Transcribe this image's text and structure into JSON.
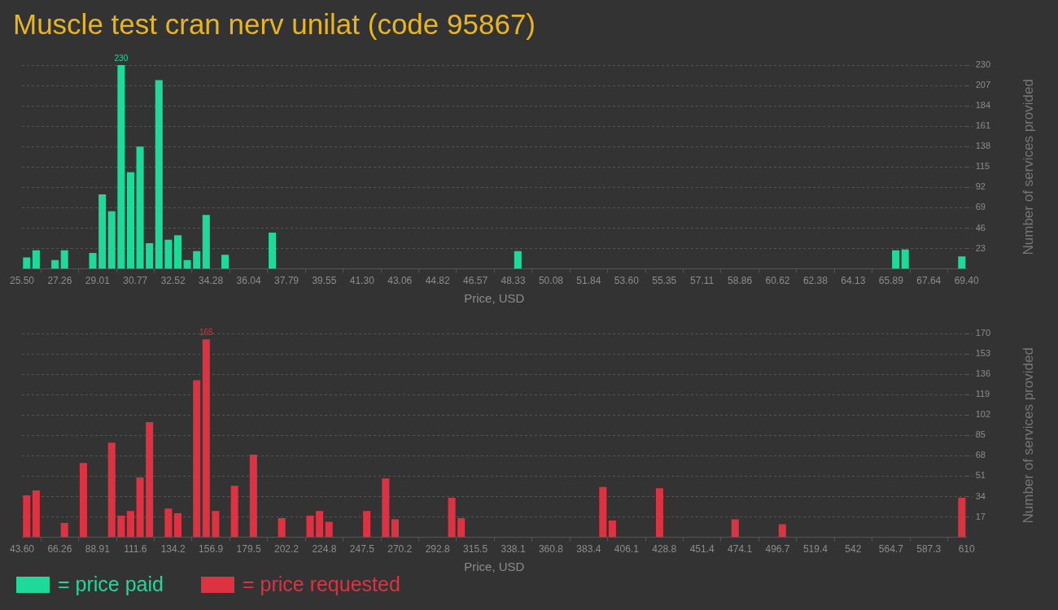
{
  "chart_data": [
    {
      "type": "histogram",
      "title": "Muscle test cran nerv unilat (code 95867)",
      "xlabel": "Price, USD",
      "ylabel": "Number of services provided",
      "bins": [
        25.5,
        25.939,
        26.378,
        26.817,
        27.256,
        27.695,
        28.134,
        28.573,
        29.012,
        29.451,
        29.89,
        30.329,
        30.768,
        31.207,
        31.646,
        32.085,
        32.524,
        32.963,
        33.402,
        33.841,
        34.28,
        34.719,
        35.158,
        35.597,
        36.036,
        36.475,
        36.914,
        37.353,
        37.792,
        38.231,
        38.67,
        39.109,
        39.548,
        39.987,
        40.426,
        40.865,
        41.304,
        41.743,
        42.182,
        42.621,
        43.06,
        43.499,
        43.938,
        44.377,
        44.816,
        45.255,
        45.694,
        46.133,
        46.572,
        47.011,
        47.45,
        47.889,
        48.328,
        48.767,
        49.206,
        49.645,
        50.084,
        50.523,
        50.962,
        51.401,
        51.84,
        52.279,
        52.718,
        53.157,
        53.596,
        54.035,
        54.474,
        54.913,
        55.352,
        55.791,
        56.23,
        56.669,
        57.108,
        57.547,
        57.986,
        58.425,
        58.864,
        59.303,
        59.742,
        60.181,
        60.62,
        61.059,
        61.498,
        61.937,
        62.376,
        62.815,
        63.254,
        63.693,
        64.132,
        64.571,
        65.01,
        65.449,
        65.888,
        66.327,
        66.766,
        67.205,
        67.644,
        68.083,
        68.522,
        68.961,
        69.4
      ],
      "series": [
        {
          "name": "= price paid",
          "color": "#1fd99a",
          "values": [
            13,
            21,
            0,
            10,
            21,
            0,
            0,
            18,
            84,
            65,
            230,
            109,
            138,
            29,
            213,
            33,
            38,
            10,
            20,
            61,
            0,
            16,
            0,
            0,
            0,
            0,
            41,
            0,
            0,
            0,
            0,
            0,
            0,
            0,
            0,
            0,
            0,
            0,
            0,
            0,
            0,
            0,
            0,
            0,
            0,
            0,
            0,
            0,
            0,
            0,
            0,
            0,
            20,
            0,
            0,
            0,
            0,
            0,
            0,
            0,
            0,
            0,
            0,
            0,
            0,
            0,
            0,
            0,
            0,
            0,
            0,
            0,
            0,
            0,
            0,
            0,
            0,
            0,
            0,
            0,
            0,
            0,
            0,
            0,
            0,
            0,
            0,
            0,
            0,
            0,
            0,
            0,
            21,
            22,
            0,
            0,
            0,
            0,
            0,
            14
          ],
          "value_labels": [
            null,
            null,
            null,
            null,
            null,
            null,
            null,
            null,
            null,
            null,
            "230",
            null,
            null,
            null,
            null,
            null,
            null,
            null,
            null,
            null,
            null,
            null,
            null,
            null,
            null,
            null,
            null,
            null,
            null,
            null,
            null,
            null,
            null,
            null,
            null,
            null,
            null,
            null,
            null,
            null,
            null,
            null,
            null,
            null,
            null,
            null,
            null,
            null,
            null,
            null,
            null,
            null,
            null,
            null,
            null,
            null,
            null,
            null,
            null,
            null,
            null,
            null,
            null,
            null,
            null,
            null,
            null,
            null,
            null,
            null,
            null,
            null,
            null,
            null,
            null,
            null,
            null,
            null,
            null,
            null,
            null,
            null,
            null,
            null,
            null,
            null,
            null,
            null,
            null,
            null,
            null,
            null,
            null,
            null,
            null,
            null,
            null,
            null,
            null,
            null
          ]
        }
      ],
      "xlim": [
        25.5,
        69.4
      ],
      "xticks": [
        {
          "value": 25.5,
          "label": "25.50"
        },
        {
          "value": 27.256,
          "label": "27.26"
        },
        {
          "value": 29.012,
          "label": "29.01"
        },
        {
          "value": 30.768,
          "label": "30.77"
        },
        {
          "value": 32.524,
          "label": "32.52"
        },
        {
          "value": 34.28,
          "label": "34.28"
        },
        {
          "value": 36.036,
          "label": "36.04"
        },
        {
          "value": 37.792,
          "label": "37.79"
        },
        {
          "value": 39.548,
          "label": "39.55"
        },
        {
          "value": 41.304,
          "label": "41.30"
        },
        {
          "value": 43.06,
          "label": "43.06"
        },
        {
          "value": 44.816,
          "label": "44.82"
        },
        {
          "value": 46.572,
          "label": "46.57"
        },
        {
          "value": 48.328,
          "label": "48.33"
        },
        {
          "value": 50.084,
          "label": "50.08"
        },
        {
          "value": 51.84,
          "label": "51.84"
        },
        {
          "value": 53.596,
          "label": "53.60"
        },
        {
          "value": 55.352,
          "label": "55.35"
        },
        {
          "value": 57.108,
          "label": "57.11"
        },
        {
          "value": 58.864,
          "label": "58.86"
        },
        {
          "value": 60.62,
          "label": "60.62"
        },
        {
          "value": 62.376,
          "label": "62.38"
        },
        {
          "value": 64.132,
          "label": "64.13"
        },
        {
          "value": 65.888,
          "label": "65.89"
        },
        {
          "value": 67.644,
          "label": "67.64"
        },
        {
          "value": 69.4,
          "label": "69.40"
        }
      ],
      "ylim": [
        0,
        230
      ],
      "yticks": [
        23,
        46,
        69,
        92,
        115,
        138,
        161,
        184,
        207,
        230
      ],
      "grid": "y",
      "legend": "bottom"
    },
    {
      "type": "histogram",
      "xlabel": "Price, USD",
      "ylabel": "Number of services provided",
      "bins": [
        43.6,
        49.264,
        54.928,
        60.592,
        66.256,
        71.92,
        77.584,
        83.248,
        88.912,
        94.576,
        100.24,
        105.904,
        111.568,
        117.232,
        122.896,
        128.56,
        134.224,
        139.888,
        145.552,
        151.216,
        156.88,
        162.544,
        168.208,
        173.872,
        179.536,
        185.2,
        190.864,
        196.528,
        202.192,
        207.856,
        213.52,
        219.184,
        224.848,
        230.512,
        236.176,
        241.84,
        247.504,
        253.168,
        258.832,
        264.496,
        270.16,
        275.824,
        281.488,
        287.152,
        292.816,
        298.48,
        304.144,
        309.808,
        315.472,
        321.136,
        326.8,
        332.464,
        338.128,
        343.792,
        349.456,
        355.12,
        360.784,
        366.448,
        372.112,
        377.776,
        383.44,
        389.104,
        394.768,
        400.432,
        406.096,
        411.76,
        417.424,
        423.088,
        428.752,
        434.416,
        440.08,
        445.744,
        451.408,
        457.072,
        462.736,
        468.4,
        474.064,
        479.728,
        485.392,
        491.056,
        496.72,
        502.384,
        508.048,
        513.712,
        519.376,
        525.04,
        530.704,
        536.368,
        542.032,
        547.696,
        553.36,
        559.024,
        564.688,
        570.352,
        576.016,
        581.68,
        587.344,
        593.008,
        598.672,
        604.336,
        610
      ],
      "series": [
        {
          "name": "= price requested",
          "color": "#dc3241",
          "values": [
            35,
            39,
            0,
            0,
            12,
            0,
            62,
            0,
            0,
            79,
            18,
            22,
            50,
            96,
            0,
            24,
            20,
            0,
            131,
            165,
            22,
            0,
            43,
            0,
            69,
            0,
            0,
            16,
            0,
            0,
            18,
            22,
            13,
            0,
            0,
            0,
            22,
            0,
            49,
            15,
            0,
            0,
            0,
            0,
            0,
            33,
            16,
            0,
            0,
            0,
            0,
            0,
            0,
            0,
            0,
            0,
            0,
            0,
            0,
            0,
            0,
            42,
            14,
            0,
            0,
            0,
            0,
            41,
            0,
            0,
            0,
            0,
            0,
            0,
            0,
            15,
            0,
            0,
            0,
            0,
            11,
            0,
            0,
            0,
            0,
            0,
            0,
            0,
            0,
            0,
            0,
            0,
            0,
            0,
            0,
            0,
            0,
            0,
            0,
            33
          ],
          "value_labels": [
            null,
            null,
            null,
            null,
            null,
            null,
            null,
            null,
            null,
            null,
            null,
            null,
            null,
            null,
            null,
            null,
            null,
            null,
            null,
            "165",
            null,
            null,
            null,
            null,
            null,
            null,
            null,
            null,
            null,
            null,
            null,
            null,
            null,
            null,
            null,
            null,
            null,
            null,
            null,
            null,
            null,
            null,
            null,
            null,
            null,
            null,
            null,
            null,
            null,
            null,
            null,
            null,
            null,
            null,
            null,
            null,
            null,
            null,
            null,
            null,
            null,
            null,
            null,
            null,
            null,
            null,
            null,
            null,
            null,
            null,
            null,
            null,
            null,
            null,
            null,
            null,
            null,
            null,
            null,
            null,
            null,
            null,
            null,
            null,
            null,
            null,
            null,
            null,
            null,
            null,
            null,
            null,
            null,
            null,
            null,
            null,
            null,
            null,
            null,
            null
          ]
        }
      ],
      "xlim": [
        43.6,
        610
      ],
      "xticks": [
        {
          "value": 43.6,
          "label": "43.60"
        },
        {
          "value": 66.256,
          "label": "66.26"
        },
        {
          "value": 88.912,
          "label": "88.91"
        },
        {
          "value": 111.568,
          "label": "111.6"
        },
        {
          "value": 134.224,
          "label": "134.2"
        },
        {
          "value": 156.88,
          "label": "156.9"
        },
        {
          "value": 179.536,
          "label": "179.5"
        },
        {
          "value": 202.192,
          "label": "202.2"
        },
        {
          "value": 224.848,
          "label": "224.8"
        },
        {
          "value": 247.504,
          "label": "247.5"
        },
        {
          "value": 270.16,
          "label": "270.2"
        },
        {
          "value": 292.816,
          "label": "292.8"
        },
        {
          "value": 315.472,
          "label": "315.5"
        },
        {
          "value": 338.128,
          "label": "338.1"
        },
        {
          "value": 360.784,
          "label": "360.8"
        },
        {
          "value": 383.44,
          "label": "383.4"
        },
        {
          "value": 406.096,
          "label": "406.1"
        },
        {
          "value": 428.752,
          "label": "428.8"
        },
        {
          "value": 451.408,
          "label": "451.4"
        },
        {
          "value": 474.064,
          "label": "474.1"
        },
        {
          "value": 496.72,
          "label": "496.7"
        },
        {
          "value": 519.376,
          "label": "519.4"
        },
        {
          "value": 542.032,
          "label": "542"
        },
        {
          "value": 564.688,
          "label": "564.7"
        },
        {
          "value": 587.344,
          "label": "587.3"
        },
        {
          "value": 610,
          "label": "610"
        }
      ],
      "ylim": [
        0,
        170
      ],
      "yticks": [
        17,
        34,
        51,
        68,
        85,
        102,
        119,
        136,
        153,
        170
      ],
      "grid": "y",
      "legend": "bottom"
    }
  ]
}
